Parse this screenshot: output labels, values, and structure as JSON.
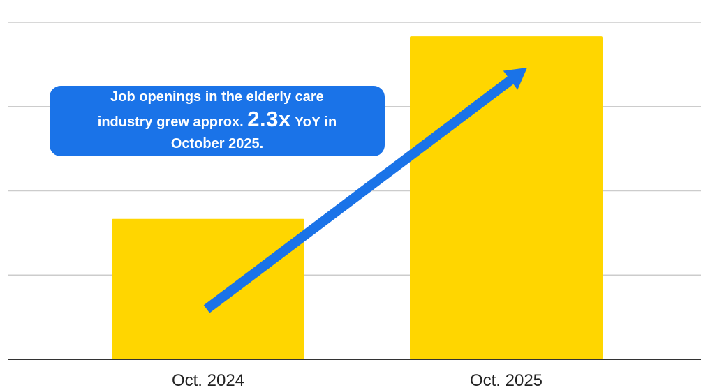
{
  "colors": {
    "bar": "#FFD600",
    "accent": "#1A73E8",
    "grid": "#cccccc",
    "axis": "#333333",
    "text": "#222222",
    "callout_text": "#ffffff"
  },
  "callout": {
    "line1": "Job openings in the elderly care",
    "line2_before": "industry grew approx.",
    "line2_highlight": "2.3x",
    "line2_after": "YoY in",
    "line3": "October 2025."
  },
  "chart_data": {
    "type": "bar",
    "categories": [
      "Oct. 2024",
      "Oct. 2025"
    ],
    "values": [
      1,
      2.3
    ],
    "ylim": [
      0,
      2.4
    ],
    "grid": true,
    "arrow": "upward trend arrow from Oct. 2024 bar to Oct. 2025 bar"
  }
}
